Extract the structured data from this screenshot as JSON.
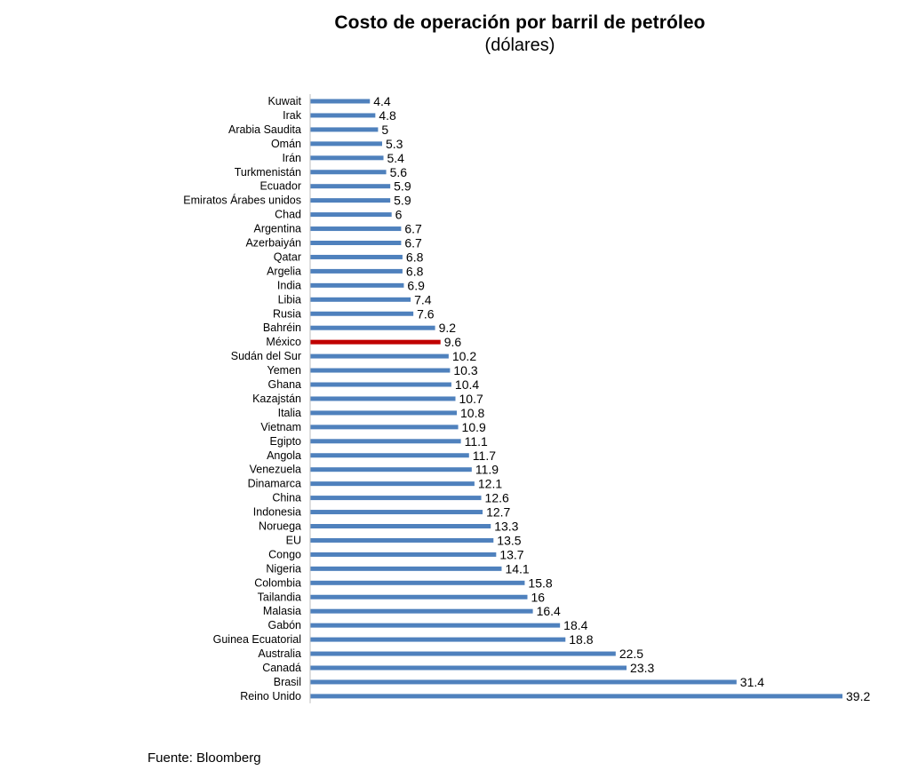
{
  "chart_data": {
    "type": "bar",
    "orientation": "horizontal",
    "title": "Costo de operación por barril de petróleo",
    "subtitle": "(dólares)",
    "source": "Fuente: Bloomberg",
    "categories": [
      "Kuwait",
      "Irak",
      "Arabia Saudita",
      "Omán",
      "Irán",
      "Turkmenistán",
      "Ecuador",
      "Emiratos Árabes unidos",
      "Chad",
      "Argentina",
      "Azerbaiyán",
      "Qatar",
      "Argelia",
      "India",
      "Libia",
      "Rusia",
      "Bahréin",
      "México",
      "Sudán del Sur",
      "Yemen",
      "Ghana",
      "Kazajstán",
      "Italia",
      "Vietnam",
      "Egipto",
      "Angola",
      "Venezuela",
      "Dinamarca",
      "China",
      "Indonesia",
      "Noruega",
      "EU",
      "Congo",
      "Nigeria",
      "Colombia",
      "Tailandia",
      "Malasia",
      "Gabón",
      "Guinea Ecuatorial",
      "Australia",
      "Canadá",
      "Brasil",
      "Reino Unido"
    ],
    "values": [
      4.4,
      4.8,
      5,
      5.3,
      5.4,
      5.6,
      5.9,
      5.9,
      6,
      6.7,
      6.7,
      6.8,
      6.8,
      6.9,
      7.4,
      7.6,
      9.2,
      9.6,
      10.2,
      10.3,
      10.4,
      10.7,
      10.8,
      10.9,
      11.1,
      11.7,
      11.9,
      12.1,
      12.6,
      12.7,
      13.3,
      13.5,
      13.7,
      14.1,
      15.8,
      16,
      16.4,
      18.4,
      18.8,
      22.5,
      23.3,
      31.4,
      39.2
    ],
    "value_labels": [
      "4.4",
      "4.8",
      "5",
      "5.3",
      "5.4",
      "5.6",
      "5.9",
      "5.9",
      "6",
      "6.7",
      "6.7",
      "6.8",
      "6.8",
      "6.9",
      "7.4",
      "7.6",
      "9.2",
      "9.6",
      "10.2",
      "10.3",
      "10.4",
      "10.7",
      "10.8",
      "10.9",
      "11.1",
      "11.7",
      "11.9",
      "12.1",
      "12.6",
      "12.7",
      "13.3",
      "13.5",
      "13.7",
      "14.1",
      "15.8",
      "16",
      "16.4",
      "18.4",
      "18.8",
      "22.5",
      "23.3",
      "31.4",
      "39.2"
    ],
    "highlight_category": "México",
    "bar_color": "#4f81bd",
    "highlight_color": "#c00000",
    "xlim": [
      0,
      39.2
    ],
    "grid": false,
    "legend": "none"
  }
}
